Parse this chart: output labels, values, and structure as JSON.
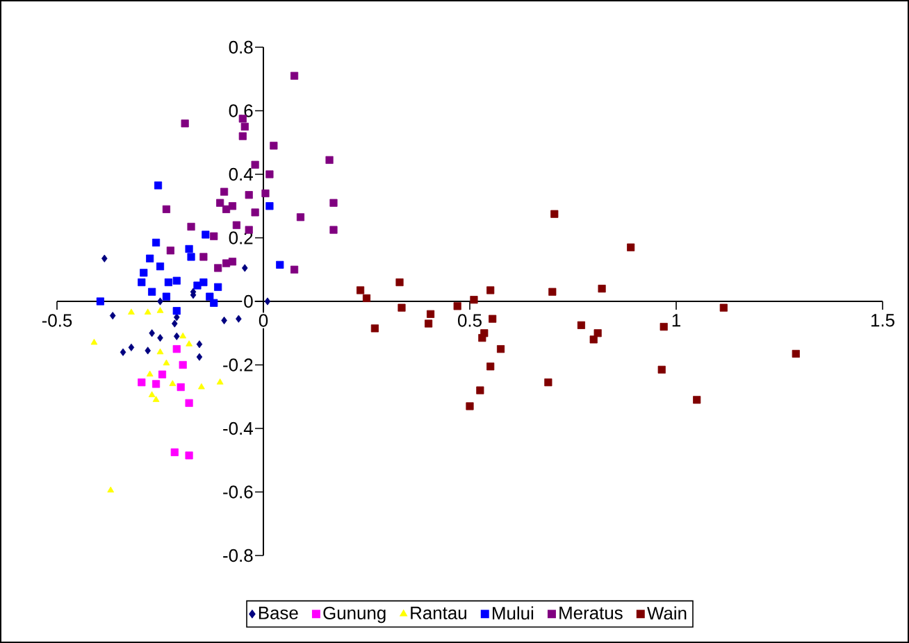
{
  "chart_data": {
    "type": "scatter",
    "xlim": [
      -0.5,
      1.5
    ],
    "ylim": [
      -0.8,
      0.8
    ],
    "xticks": [
      -0.5,
      0,
      0.5,
      1,
      1.5
    ],
    "yticks": [
      -0.8,
      -0.6,
      -0.4,
      -0.2,
      0,
      0.2,
      0.4,
      0.6,
      0.8
    ],
    "legend": "bottom",
    "grid": false,
    "series": [
      {
        "name": "Base",
        "color": "#000080",
        "marker": "diamond",
        "x": [
          -0.385,
          -0.045,
          -0.17,
          0.01,
          -0.365,
          -0.27,
          -0.25,
          -0.215,
          -0.21,
          -0.34,
          -0.32,
          -0.28,
          -0.155,
          -0.155,
          -0.095,
          -0.06,
          -0.17,
          -0.25,
          -0.21
        ],
        "values": [
          0.135,
          0.105,
          0.03,
          0.0,
          -0.045,
          -0.1,
          -0.115,
          -0.07,
          -0.05,
          -0.16,
          -0.145,
          -0.155,
          -0.135,
          -0.175,
          -0.06,
          -0.055,
          0.02,
          0.0,
          -0.11
        ]
      },
      {
        "name": "Gunung",
        "color": "#ff00ff",
        "marker": "square",
        "x": [
          -0.21,
          -0.195,
          -0.245,
          -0.295,
          -0.2,
          -0.18,
          -0.215,
          -0.18,
          -0.26
        ],
        "values": [
          -0.15,
          -0.2,
          -0.23,
          -0.255,
          -0.27,
          -0.32,
          -0.475,
          -0.485,
          -0.26
        ]
      },
      {
        "name": "Rantau",
        "color": "#ffff00",
        "marker": "triangle",
        "x": [
          -0.41,
          -0.32,
          -0.28,
          -0.25,
          -0.195,
          -0.18,
          -0.25,
          -0.235,
          -0.275,
          -0.22,
          -0.26,
          -0.15,
          -0.105,
          -0.37,
          -0.27
        ],
        "values": [
          -0.13,
          -0.035,
          -0.035,
          -0.03,
          -0.11,
          -0.135,
          -0.16,
          -0.195,
          -0.23,
          -0.26,
          -0.31,
          -0.27,
          -0.255,
          -0.595,
          -0.295
        ]
      },
      {
        "name": "Mului",
        "color": "#0000ff",
        "marker": "square",
        "x": [
          -0.255,
          0.015,
          -0.14,
          -0.26,
          -0.18,
          -0.175,
          -0.275,
          -0.25,
          -0.29,
          -0.295,
          -0.27,
          -0.23,
          -0.21,
          -0.16,
          -0.145,
          -0.11,
          0.04,
          -0.395,
          -0.13,
          -0.235,
          -0.12,
          -0.21
        ],
        "values": [
          0.365,
          0.3,
          0.21,
          0.185,
          0.165,
          0.14,
          0.135,
          0.11,
          0.09,
          0.06,
          0.03,
          0.06,
          0.065,
          0.05,
          0.06,
          0.045,
          0.115,
          0.0,
          0.015,
          0.015,
          -0.005,
          -0.03
        ]
      },
      {
        "name": "Meratus",
        "color": "#800080",
        "marker": "square",
        "x": [
          0.075,
          -0.19,
          -0.05,
          -0.045,
          -0.05,
          0.025,
          0.16,
          -0.02,
          0.015,
          -0.235,
          -0.095,
          -0.035,
          0.005,
          -0.105,
          -0.075,
          -0.09,
          -0.02,
          0.17,
          0.09,
          0.17,
          -0.175,
          -0.12,
          -0.065,
          -0.035,
          -0.225,
          -0.145,
          -0.09,
          -0.11,
          0.075,
          -0.075
        ],
        "values": [
          0.71,
          0.56,
          0.575,
          0.55,
          0.52,
          0.49,
          0.445,
          0.43,
          0.4,
          0.29,
          0.345,
          0.335,
          0.34,
          0.31,
          0.3,
          0.29,
          0.28,
          0.31,
          0.265,
          0.225,
          0.235,
          0.205,
          0.24,
          0.225,
          0.16,
          0.14,
          0.12,
          0.105,
          0.1,
          0.125
        ]
      },
      {
        "name": "Wain",
        "color": "#800000",
        "marker": "square",
        "x": [
          0.235,
          0.25,
          0.33,
          0.335,
          0.27,
          0.405,
          0.4,
          0.47,
          0.51,
          0.55,
          0.555,
          0.535,
          0.53,
          0.575,
          0.55,
          0.525,
          0.5,
          0.705,
          0.7,
          0.69,
          0.77,
          0.8,
          0.81,
          0.82,
          0.89,
          0.97,
          0.965,
          1.05,
          1.115,
          1.29
        ],
        "values": [
          0.035,
          0.01,
          0.06,
          -0.02,
          -0.085,
          -0.04,
          -0.07,
          -0.015,
          0.005,
          0.035,
          -0.055,
          -0.1,
          -0.115,
          -0.15,
          -0.205,
          -0.28,
          -0.33,
          0.275,
          0.03,
          -0.255,
          -0.075,
          -0.12,
          -0.1,
          0.04,
          0.17,
          -0.08,
          -0.215,
          -0.31,
          -0.02,
          -0.165
        ]
      }
    ]
  }
}
